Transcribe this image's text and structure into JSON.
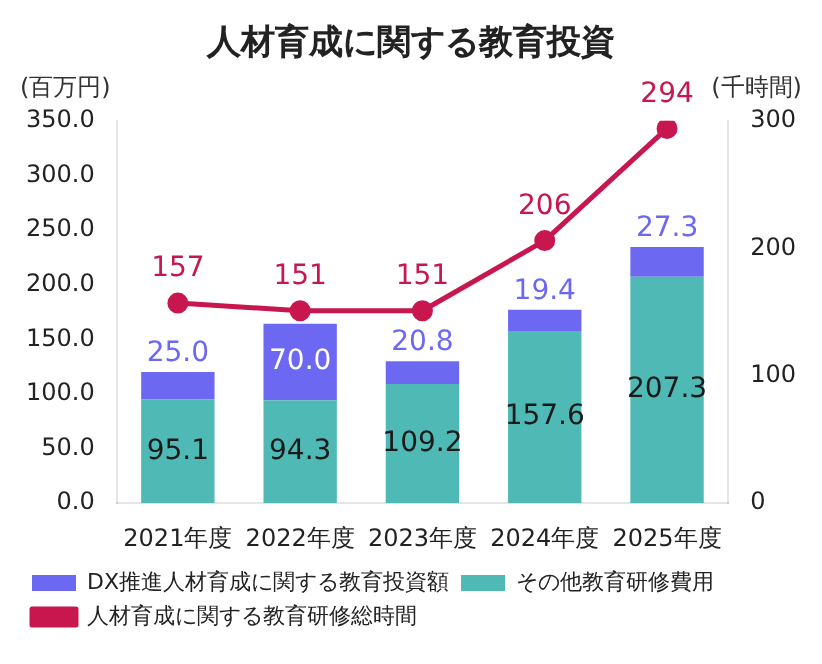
{
  "chart_data": {
    "type": "bar",
    "title": "人材育成に関する教育投資",
    "ylabel": "(百万円)",
    "y2label": "(千時間)",
    "categories": [
      "2021年度",
      "2022年度",
      "2023年度",
      "2024年度",
      "2025年度"
    ],
    "stacked": true,
    "series": [
      {
        "name": "その他教育研修費用",
        "color": "#4fbab5",
        "values": [
          95.1,
          94.3,
          109.2,
          157.6,
          207.3
        ],
        "value_labels": [
          "95.1",
          "94.3",
          "109.2",
          "157.6",
          "207.3"
        ]
      },
      {
        "name": "DX推進人材育成に関する教育投資額",
        "color": "#6c68f2",
        "values": [
          25.0,
          70.0,
          20.8,
          19.4,
          27.3
        ],
        "value_labels": [
          "25.0",
          "70.0",
          "20.8",
          "19.4",
          "27.3"
        ]
      },
      {
        "name": "人材育成に関する教育研修総時間",
        "type": "line",
        "axis": "y2",
        "color": "#c8164f",
        "marker": "circle",
        "values": [
          157,
          151,
          151,
          206,
          294
        ],
        "value_labels": [
          "157",
          "151",
          "151",
          "206",
          "294"
        ]
      }
    ],
    "ylim": [
      0,
      350
    ],
    "yticks": [
      {
        "value": 0,
        "label": "0.0"
      },
      {
        "value": 50,
        "label": "50.0"
      },
      {
        "value": 100,
        "label": "100.0"
      },
      {
        "value": 150,
        "label": "150.0"
      },
      {
        "value": 200,
        "label": "200.0"
      },
      {
        "value": 250,
        "label": "250.0"
      },
      {
        "value": 300,
        "label": "300.0"
      },
      {
        "value": 350,
        "label": "350.0"
      }
    ],
    "y2lim": [
      0,
      300
    ],
    "y2ticks": [
      0,
      100,
      200,
      300
    ],
    "legend": "bottom",
    "grid": false
  }
}
